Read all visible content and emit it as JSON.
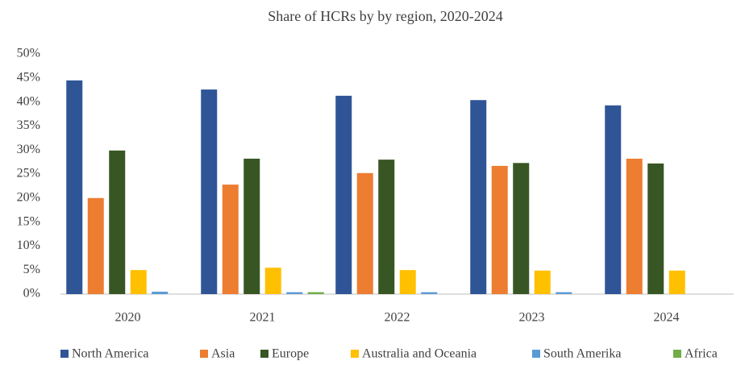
{
  "chart_data": {
    "type": "bar",
    "title": "Share of HCRs by by region, 2020-2024",
    "categories": [
      "2020",
      "2021",
      "2022",
      "2023",
      "2024"
    ],
    "series": [
      {
        "name": "North America",
        "color": "#2f5597",
        "values": [
          44.5,
          42.6,
          41.3,
          40.4,
          39.3
        ]
      },
      {
        "name": "Asia",
        "color": "#ed7d31",
        "values": [
          20.0,
          22.8,
          25.2,
          26.7,
          28.2
        ]
      },
      {
        "name": "Europe",
        "color": "#375623",
        "values": [
          29.9,
          28.2,
          28.0,
          27.3,
          27.2
        ]
      },
      {
        "name": "Australia and Oceania",
        "color": "#ffc000",
        "values": [
          5.0,
          5.5,
          5.0,
          4.9,
          4.9
        ]
      },
      {
        "name": "South Amerika",
        "color": "#5b9bd5",
        "values": [
          0.5,
          0.4,
          0.4,
          0.4,
          0
        ]
      },
      {
        "name": "Africa",
        "color": "#70ad47",
        "values": [
          0,
          0.4,
          0,
          0,
          0
        ]
      }
    ],
    "ylim": [
      0,
      50
    ],
    "yticks": [
      {
        "value": 0,
        "label": "0%"
      },
      {
        "value": 5,
        "label": "5%"
      },
      {
        "value": 10,
        "label": "10%"
      },
      {
        "value": 15,
        "label": "15%"
      },
      {
        "value": 20,
        "label": "20%"
      },
      {
        "value": 25,
        "label": "25%"
      },
      {
        "value": 30,
        "label": "30%"
      },
      {
        "value": 35,
        "label": "35%"
      },
      {
        "value": 40,
        "label": "40%"
      },
      {
        "value": 45,
        "label": "45%"
      },
      {
        "value": 50,
        "label": "50%"
      }
    ],
    "grid": false,
    "legend": "bottom"
  }
}
